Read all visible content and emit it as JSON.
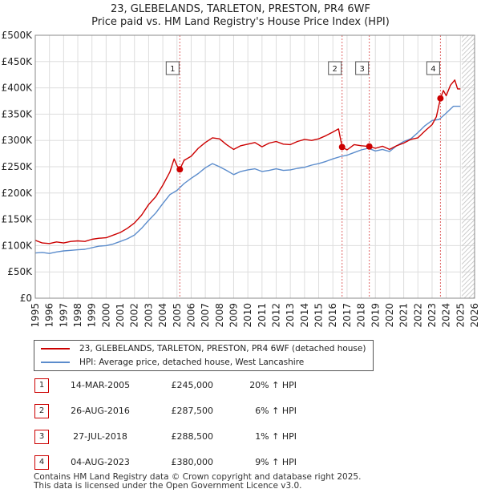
{
  "title_line1": "23, GLEBELANDS, TARLETON, PRESTON, PR4 6WF",
  "title_line2": "Price paid vs. HM Land Registry's House Price Index (HPI)",
  "colors": {
    "property": "#cc0000",
    "hpi": "#5b8ccc",
    "marker": "#cc0000",
    "grid": "#dddddd",
    "future_hatch": "#bbbbbb"
  },
  "chart_data": {
    "type": "line",
    "title": "Price paid vs. HM Land Registry's House Price Index (HPI)",
    "xlabel": "",
    "ylabel": "",
    "xlim": [
      1995,
      2026
    ],
    "ylim": [
      0,
      500000
    ],
    "y_ticks": [
      0,
      50000,
      100000,
      150000,
      200000,
      250000,
      300000,
      350000,
      400000,
      450000,
      500000
    ],
    "y_tick_labels": [
      "£0",
      "£50K",
      "£100K",
      "£150K",
      "£200K",
      "£250K",
      "£300K",
      "£350K",
      "£400K",
      "£450K",
      "£500K"
    ],
    "x_ticks": [
      1995,
      1996,
      1997,
      1998,
      1999,
      2000,
      2001,
      2002,
      2003,
      2004,
      2005,
      2006,
      2007,
      2008,
      2009,
      2010,
      2011,
      2012,
      2013,
      2014,
      2015,
      2016,
      2017,
      2018,
      2019,
      2020,
      2021,
      2022,
      2023,
      2024,
      2025,
      2026
    ],
    "x_tick_labels": [
      "1995",
      "1996",
      "1997",
      "1998",
      "1999",
      "2000",
      "2001",
      "2002",
      "2003",
      "2004",
      "2005",
      "2006",
      "2007",
      "2008",
      "2009",
      "2010",
      "2011",
      "2012",
      "2013",
      "2014",
      "2015",
      "2016",
      "2017",
      "2018",
      "2019",
      "2020",
      "2021",
      "2022",
      "2023",
      "2024",
      "2025",
      "2026"
    ],
    "future_start": 2025.1,
    "series": [
      {
        "name": "23, GLEBELANDS, TARLETON, PRESTON, PR4 6WF (detached house)",
        "color": "#cc0000",
        "x": [
          1995.0,
          1995.5,
          1996.0,
          1996.5,
          1997.0,
          1997.5,
          1998.0,
          1998.5,
          1999.0,
          1999.5,
          2000.0,
          2000.5,
          2001.0,
          2001.5,
          2002.0,
          2002.5,
          2003.0,
          2003.5,
          2004.0,
          2004.5,
          2004.8,
          2005.0,
          2005.2,
          2005.5,
          2006.0,
          2006.5,
          2007.0,
          2007.5,
          2008.0,
          2008.5,
          2009.0,
          2009.5,
          2010.0,
          2010.5,
          2011.0,
          2011.5,
          2012.0,
          2012.5,
          2013.0,
          2013.5,
          2014.0,
          2014.5,
          2015.0,
          2015.5,
          2016.0,
          2016.4,
          2016.65,
          2017.0,
          2017.5,
          2018.0,
          2018.57,
          2019.0,
          2019.5,
          2020.0,
          2020.5,
          2021.0,
          2021.5,
          2022.0,
          2022.5,
          2023.0,
          2023.3,
          2023.59,
          2023.8,
          2024.0,
          2024.3,
          2024.6,
          2024.8,
          2025.0
        ],
        "values": [
          110000,
          105000,
          104000,
          107000,
          105000,
          108000,
          109000,
          108000,
          112000,
          114000,
          115000,
          120000,
          125000,
          133000,
          143000,
          158000,
          178000,
          193000,
          215000,
          240000,
          265000,
          252000,
          245000,
          262000,
          270000,
          285000,
          296000,
          305000,
          303000,
          292000,
          283000,
          290000,
          293000,
          296000,
          288000,
          295000,
          298000,
          293000,
          292000,
          298000,
          302000,
          300000,
          303000,
          309000,
          316000,
          322000,
          287500,
          282000,
          292000,
          290000,
          288500,
          285000,
          289000,
          283000,
          290000,
          295000,
          302000,
          305000,
          318000,
          330000,
          345000,
          380000,
          395000,
          385000,
          405000,
          415000,
          398000,
          398000
        ]
      },
      {
        "name": "HPI: Average price, detached house, West Lancashire",
        "color": "#5b8ccc",
        "x": [
          1995.0,
          1995.5,
          1996.0,
          1996.5,
          1997.0,
          1997.5,
          1998.0,
          1998.5,
          1999.0,
          1999.5,
          2000.0,
          2000.5,
          2001.0,
          2001.5,
          2002.0,
          2002.5,
          2003.0,
          2003.5,
          2004.0,
          2004.5,
          2005.0,
          2005.5,
          2006.0,
          2006.5,
          2007.0,
          2007.5,
          2008.0,
          2008.5,
          2009.0,
          2009.5,
          2010.0,
          2010.5,
          2011.0,
          2011.5,
          2012.0,
          2012.5,
          2013.0,
          2013.5,
          2014.0,
          2014.5,
          2015.0,
          2015.5,
          2016.0,
          2016.5,
          2017.0,
          2017.5,
          2018.0,
          2018.5,
          2019.0,
          2019.5,
          2020.0,
          2020.5,
          2021.0,
          2021.5,
          2022.0,
          2022.5,
          2023.0,
          2023.5,
          2024.0,
          2024.5,
          2025.0
        ],
        "values": [
          86000,
          87000,
          85000,
          88000,
          90000,
          91000,
          92000,
          93000,
          96000,
          99000,
          100000,
          103000,
          108000,
          113000,
          120000,
          133000,
          148000,
          162000,
          180000,
          197000,
          205000,
          218000,
          228000,
          237000,
          248000,
          256000,
          250000,
          243000,
          235000,
          241000,
          244000,
          246000,
          241000,
          243000,
          246000,
          243000,
          244000,
          247000,
          249000,
          253000,
          256000,
          260000,
          265000,
          269000,
          272000,
          277000,
          282000,
          285000,
          280000,
          283000,
          279000,
          290000,
          298000,
          303000,
          315000,
          328000,
          338000,
          340000,
          352000,
          365000,
          365000
        ]
      }
    ],
    "sales": [
      {
        "n": 1,
        "x": 2005.2,
        "value": 245000
      },
      {
        "n": 2,
        "x": 2016.65,
        "value": 287500
      },
      {
        "n": 3,
        "x": 2018.57,
        "value": 288500
      },
      {
        "n": 4,
        "x": 2023.59,
        "value": 380000
      }
    ]
  },
  "legend": {
    "property_label": "23, GLEBELANDS, TARLETON, PRESTON, PR4 6WF (detached house)",
    "hpi_label": "HPI: Average price, detached house, West Lancashire"
  },
  "sales_table": [
    {
      "n": "1",
      "date": "14-MAR-2005",
      "price": "£245,000",
      "hpi": "20% ↑ HPI"
    },
    {
      "n": "2",
      "date": "26-AUG-2016",
      "price": "£287,500",
      "hpi": "6% ↑ HPI"
    },
    {
      "n": "3",
      "date": "27-JUL-2018",
      "price": "£288,500",
      "hpi": "1% ↑ HPI"
    },
    {
      "n": "4",
      "date": "04-AUG-2023",
      "price": "£380,000",
      "hpi": "9% ↑ HPI"
    }
  ],
  "footer_line1": "Contains HM Land Registry data © Crown copyright and database right 2025.",
  "footer_line2": "This data is licensed under the Open Government Licence v3.0."
}
